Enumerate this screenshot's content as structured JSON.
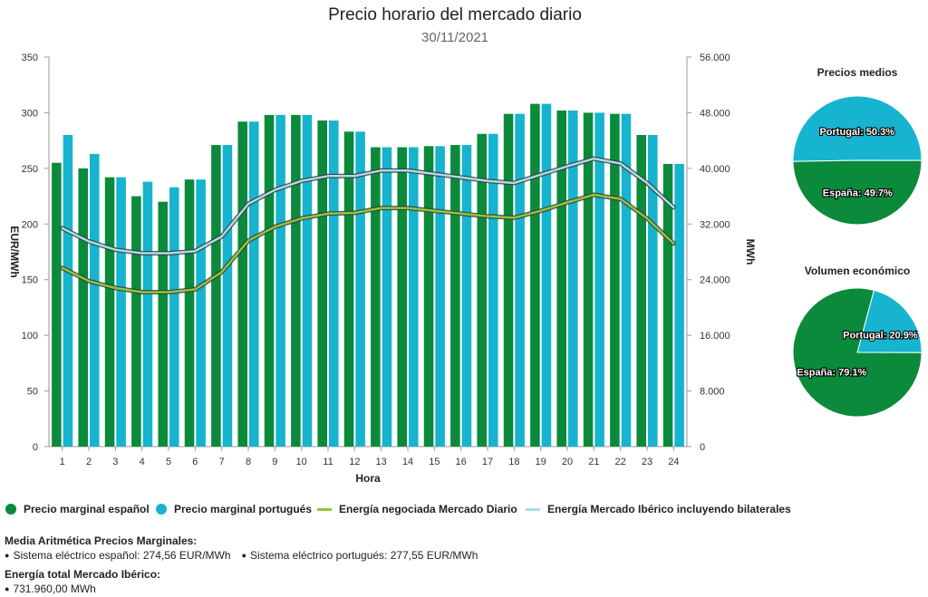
{
  "header": {
    "title": "Precio horario del mercado diario",
    "subtitle": "30/11/2021"
  },
  "colors": {
    "spain": "#0b8a3c",
    "portugal": "#16b4cf",
    "energy_diario": "#8cc63f",
    "energy_iberico": "#a9dbe6"
  },
  "chart_data": [
    {
      "type": "bar",
      "title": "Precio horario del mercado diario",
      "subtitle": "30/11/2021",
      "xlabel": "Hora",
      "ylabel": "EUR/MWh",
      "y2label": "MWh",
      "categories": [
        "1",
        "2",
        "3",
        "4",
        "5",
        "6",
        "7",
        "8",
        "9",
        "10",
        "11",
        "12",
        "13",
        "14",
        "15",
        "16",
        "17",
        "18",
        "19",
        "20",
        "21",
        "22",
        "23",
        "24"
      ],
      "ylim": [
        0,
        350
      ],
      "y2lim": [
        0,
        56000
      ],
      "yticks": [
        "0",
        "50",
        "100",
        "150",
        "200",
        "250",
        "300",
        "350"
      ],
      "y2ticks": [
        "0",
        "8.000",
        "16.000",
        "24.000",
        "32.000",
        "40.000",
        "48.000",
        "56.000"
      ],
      "grid": false,
      "legend_position": "bottom",
      "series": [
        {
          "name": "Precio marginal español",
          "type": "bar",
          "axis": "left",
          "values": [
            255,
            250,
            242,
            225,
            220,
            240,
            271,
            292,
            298,
            298,
            293,
            283,
            269,
            269,
            270,
            271,
            281,
            299,
            308,
            302,
            300,
            299,
            280,
            254
          ]
        },
        {
          "name": "Precio marginal portugués",
          "type": "bar",
          "axis": "left",
          "values": [
            280,
            263,
            242,
            238,
            233,
            240,
            271,
            292,
            298,
            298,
            293,
            283,
            269,
            269,
            270,
            271,
            281,
            299,
            308,
            302,
            300,
            299,
            280,
            254
          ]
        },
        {
          "name": "Energía negociada Mercado Diario",
          "type": "line",
          "axis": "right",
          "values": [
            25700,
            23800,
            22800,
            22200,
            22200,
            22600,
            25100,
            29600,
            31600,
            32800,
            33500,
            33600,
            34300,
            34300,
            33900,
            33500,
            33100,
            32900,
            33900,
            35100,
            36200,
            35600,
            32800,
            29200
          ]
        },
        {
          "name": "Energía Mercado Ibérico incluyendo bilaterales",
          "type": "line",
          "axis": "right",
          "values": [
            31400,
            29500,
            28300,
            27800,
            27800,
            28100,
            30200,
            34900,
            36900,
            38200,
            38900,
            38900,
            39700,
            39700,
            39200,
            38700,
            38200,
            37900,
            39100,
            40300,
            41400,
            40700,
            37900,
            34400
          ]
        }
      ]
    },
    {
      "type": "pie",
      "title": "Precios medios",
      "slices": [
        {
          "label": "Portugal",
          "value": 50.3,
          "display": "Portugal: 50.3%"
        },
        {
          "label": "España",
          "value": 49.7,
          "display": "España: 49.7%"
        }
      ]
    },
    {
      "type": "pie",
      "title": "Volumen económico",
      "slices": [
        {
          "label": "Portugal",
          "value": 20.9,
          "display": "Portugal: 20.9%"
        },
        {
          "label": "España",
          "value": 79.1,
          "display": "España: 79.1%"
        }
      ]
    }
  ],
  "summary": {
    "media_heading": "Media Aritmética Precios Marginales:",
    "media_es": "Sistema eléctrico español: 274,56 EUR/MWh",
    "media_pt": "Sistema eléctrico portugués: 277,55 EUR/MWh",
    "energia_heading": "Energía total Mercado Ibérico:",
    "energia_total": "731.960,00 MWh"
  }
}
